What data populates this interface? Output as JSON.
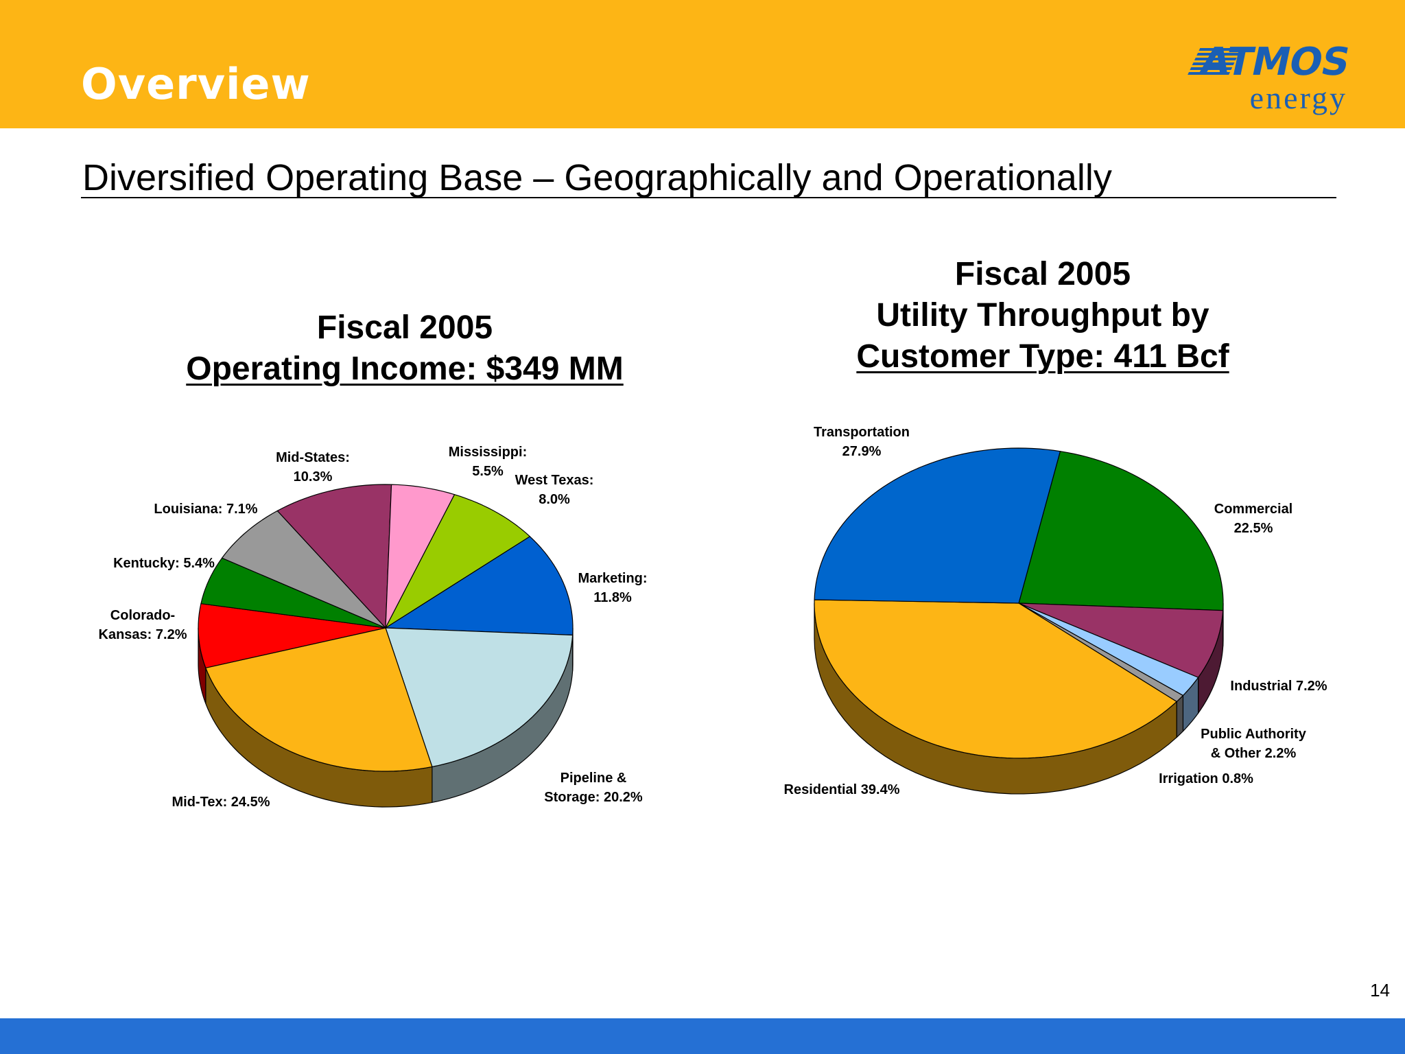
{
  "header": {
    "title": "Overview",
    "logo_main": "ATMOS",
    "logo_sub": "energy"
  },
  "subtitle": "Diversified Operating Base – Geographically and Operationally",
  "page_number": "14",
  "colors": {
    "header_bg": "#FDB515",
    "footer_bg": "#2570D4",
    "logo_blue": "#1A5FB4"
  },
  "chart_data": [
    {
      "type": "pie",
      "title_line1": "Fiscal 2005",
      "title_line2": "Operating Income: $349 MM",
      "slices": [
        {
          "label": "Marketing:",
          "value_label": "11.8%",
          "value": 11.8,
          "color": "#0060D0"
        },
        {
          "label": "Pipeline &",
          "value_label": "Storage: 20.2%",
          "value": 20.2,
          "color": "#BFE0E6"
        },
        {
          "label": "Mid-Tex: 24.5%",
          "value_label": "",
          "value": 24.5,
          "color": "#FDB515"
        },
        {
          "label": "Colorado-",
          "value_label": "Kansas: 7.2%",
          "value": 7.2,
          "color": "#FF0000"
        },
        {
          "label": "Kentucky: 5.4%",
          "value_label": "",
          "value": 5.4,
          "color": "#008000"
        },
        {
          "label": "Louisiana: 7.1%",
          "value_label": "",
          "value": 7.1,
          "color": "#999999"
        },
        {
          "label": "Mid-States:",
          "value_label": "10.3%",
          "value": 10.3,
          "color": "#993366"
        },
        {
          "label": "Mississippi:",
          "value_label": "5.5%",
          "value": 5.5,
          "color": "#FF99CC"
        },
        {
          "label": "West Texas:",
          "value_label": "8.0%",
          "value": 8.0,
          "color": "#99CC00"
        }
      ]
    },
    {
      "type": "pie",
      "title_line1": "Fiscal 2005",
      "title_line2": "Utility Throughput by",
      "title_line3": "Customer Type: 411 Bcf",
      "slices": [
        {
          "label": "Commercial",
          "value_label": "22.5%",
          "value": 22.5,
          "color": "#008000"
        },
        {
          "label": "Industrial 7.2%",
          "value_label": "",
          "value": 7.2,
          "color": "#993366"
        },
        {
          "label": "Public Authority",
          "value_label": "& Other 2.2%",
          "value": 2.2,
          "color": "#99CCFF"
        },
        {
          "label": "Irrigation 0.8%",
          "value_label": "",
          "value": 0.8,
          "color": "#999999"
        },
        {
          "label": "Residential 39.4%",
          "value_label": "",
          "value": 39.4,
          "color": "#FDB515"
        },
        {
          "label": "Transportation",
          "value_label": "27.9%",
          "value": 27.9,
          "color": "#0066CC"
        }
      ]
    }
  ]
}
